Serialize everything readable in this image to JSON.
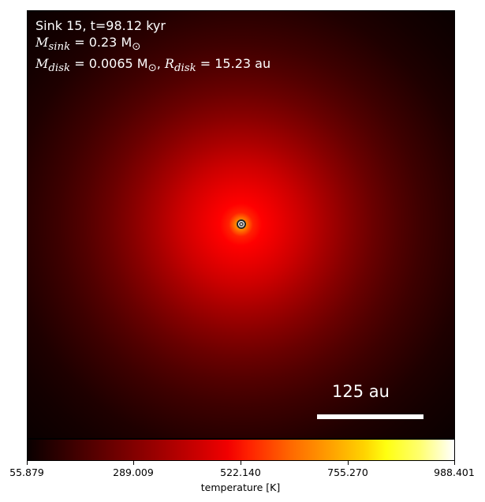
{
  "overlay": {
    "title": "Sink 15, t=98.12 kyr",
    "sink_mass_symbol": "M",
    "sink_mass_sub": "sink",
    "sink_mass_value": " = 0.23 M",
    "sink_mass_unit_sub": "⊙",
    "disk_mass_symbol": "M",
    "disk_mass_sub": "disk",
    "disk_mass_value": " = 0.0065 M",
    "disk_mass_unit_sub": "⊙",
    "disk_radius_sep": ", ",
    "disk_radius_symbol": "R",
    "disk_radius_sub": "disk",
    "disk_radius_value": " = 15.23 au"
  },
  "scalebar": {
    "label": "125 au",
    "length_au": 125
  },
  "colorbar": {
    "colormap": "hot",
    "tick_labels": [
      "55.879",
      "289.009",
      "522.140",
      "755.270",
      "988.401"
    ],
    "label": "temperature [K]",
    "range": [
      55.879,
      988.401
    ]
  },
  "colors": {
    "map_peak": "#ffff10",
    "map_background": "#0a0000",
    "text": "#ffffff"
  }
}
